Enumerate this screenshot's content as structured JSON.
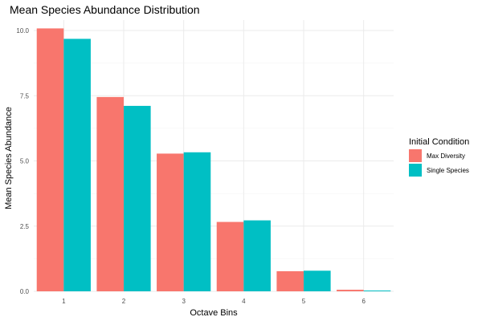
{
  "chart_data": {
    "type": "bar",
    "title": "Mean Species Abundance Distribution",
    "xlabel": "Octave Bins",
    "ylabel": "Mean Species Abundance",
    "categories": [
      "1",
      "2",
      "3",
      "4",
      "5",
      "6"
    ],
    "series": [
      {
        "name": "Max Diversity",
        "color": "#F8766D",
        "values": [
          10.08,
          7.45,
          5.28,
          2.66,
          0.77,
          0.06
        ]
      },
      {
        "name": "Single Species",
        "color": "#00BFC4",
        "values": [
          9.68,
          7.11,
          5.33,
          2.72,
          0.79,
          0.03
        ]
      }
    ],
    "ylim": [
      0,
      10.4
    ],
    "yticks": [
      0.0,
      2.5,
      5.0,
      7.5,
      10.0
    ],
    "ytick_labels": [
      "0.0",
      "2.5",
      "5.0",
      "7.5",
      "10.0"
    ],
    "grid": true,
    "legend": {
      "title": "Initial Condition",
      "position": "right"
    }
  }
}
